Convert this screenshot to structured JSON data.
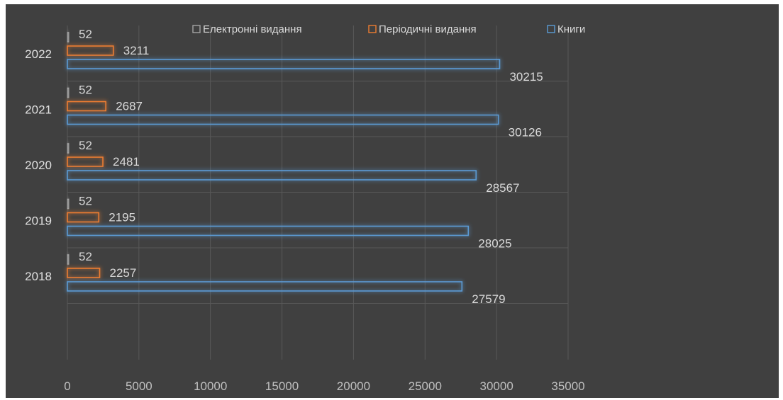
{
  "chart_data": {
    "type": "bar",
    "orientation": "horizontal",
    "title": "",
    "xlabel": "",
    "ylabel": "",
    "categories": [
      "2018",
      "2019",
      "2020",
      "2021",
      "2022"
    ],
    "series": [
      {
        "name": "Електронні видання",
        "values": [
          52,
          52,
          52,
          52,
          52
        ],
        "color": "#a5a5a5"
      },
      {
        "name": "Періодичні видання",
        "values": [
          2257,
          2195,
          2481,
          2687,
          3211
        ],
        "color": "#ed7d31"
      },
      {
        "name": "Книги",
        "values": [
          27579,
          28025,
          28567,
          30126,
          30215
        ],
        "color": "#5b9bd5"
      }
    ],
    "legend_order": [
      "Електронні видання",
      "Періодичні видання",
      "Книги"
    ],
    "xlim": [
      0,
      35000
    ],
    "xticks": [
      0,
      5000,
      10000,
      15000,
      20000,
      25000,
      30000,
      35000
    ],
    "grid": true,
    "legend_position": "top",
    "background_color": "#404040",
    "grid_color": "#595959"
  }
}
